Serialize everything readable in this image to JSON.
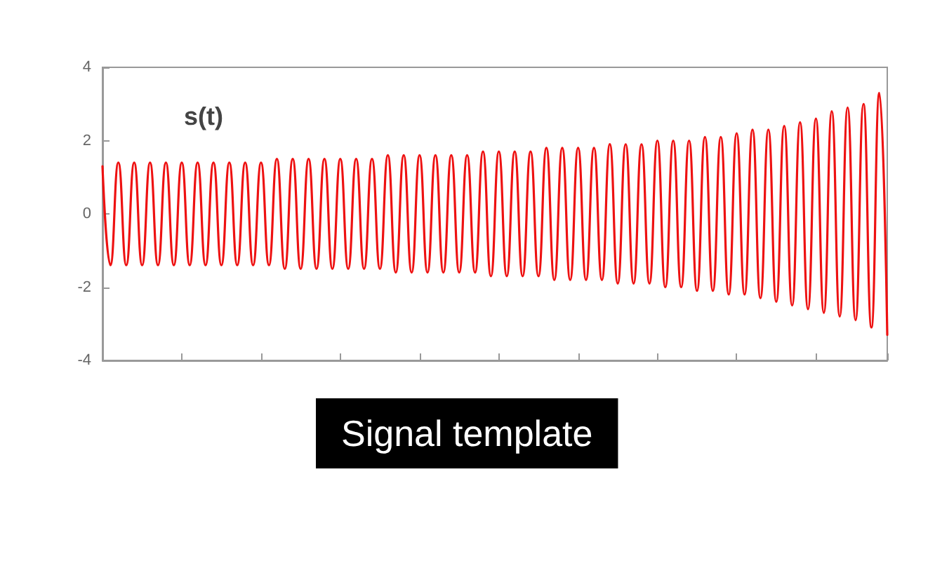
{
  "chart_data": {
    "type": "line",
    "categories": [
      null,
      null,
      null,
      null,
      null,
      null,
      null,
      null,
      null,
      null,
      null,
      null,
      null,
      null,
      null,
      null,
      null,
      null,
      null,
      null,
      null,
      null,
      null,
      null,
      null,
      null,
      null,
      null,
      null,
      null,
      null,
      null,
      null,
      null,
      null,
      null,
      null,
      null,
      null,
      null,
      null,
      null,
      null,
      null,
      null,
      null,
      null,
      null,
      null,
      null,
      null,
      null,
      null,
      null,
      null,
      null,
      null,
      null,
      null,
      null,
      null,
      null,
      null,
      null,
      null,
      null,
      null,
      null,
      null,
      null,
      null,
      null,
      null,
      null,
      null,
      null,
      null,
      null,
      null,
      null,
      null,
      null,
      null,
      null,
      null,
      null,
      null,
      null,
      null,
      null,
      null,
      null,
      null,
      null,
      null,
      null,
      null,
      null,
      null,
      null
    ],
    "series": [
      {
        "name": "s(t)",
        "color": "#ee1111",
        "values": [
          1.3,
          -1.4,
          1.4,
          -1.4,
          1.4,
          -1.4,
          1.4,
          -1.4,
          1.4,
          -1.4,
          1.4,
          -1.4,
          1.4,
          -1.4,
          1.4,
          -1.4,
          1.4,
          -1.4,
          1.4,
          -1.4,
          1.4,
          -1.4,
          1.5,
          -1.5,
          1.5,
          -1.5,
          1.5,
          -1.5,
          1.5,
          -1.5,
          1.5,
          -1.5,
          1.5,
          -1.5,
          1.5,
          -1.5,
          1.6,
          -1.6,
          1.6,
          -1.6,
          1.6,
          -1.6,
          1.6,
          -1.6,
          1.6,
          -1.6,
          1.6,
          -1.6,
          1.7,
          -1.7,
          1.7,
          -1.7,
          1.7,
          -1.7,
          1.7,
          -1.7,
          1.8,
          -1.8,
          1.8,
          -1.8,
          1.8,
          -1.8,
          1.8,
          -1.8,
          1.9,
          -1.9,
          1.9,
          -1.9,
          1.9,
          -1.9,
          2.0,
          -2.0,
          2.0,
          -2.0,
          2.0,
          -2.1,
          2.1,
          -2.1,
          2.1,
          -2.2,
          2.2,
          -2.2,
          2.3,
          -2.3,
          2.3,
          -2.4,
          2.4,
          -2.5,
          2.5,
          -2.6,
          2.6,
          -2.7,
          2.8,
          -2.8,
          2.9,
          -2.9,
          3.0,
          -3.1,
          3.3,
          -3.3
        ]
      }
    ],
    "ylim": [
      -4,
      4
    ],
    "yticks": [
      -4,
      -2,
      0,
      2,
      4
    ],
    "tick_labels": "y",
    "grid": false,
    "line_style": "solid",
    "legend": false,
    "annotations": [
      "Signal template"
    ]
  }
}
